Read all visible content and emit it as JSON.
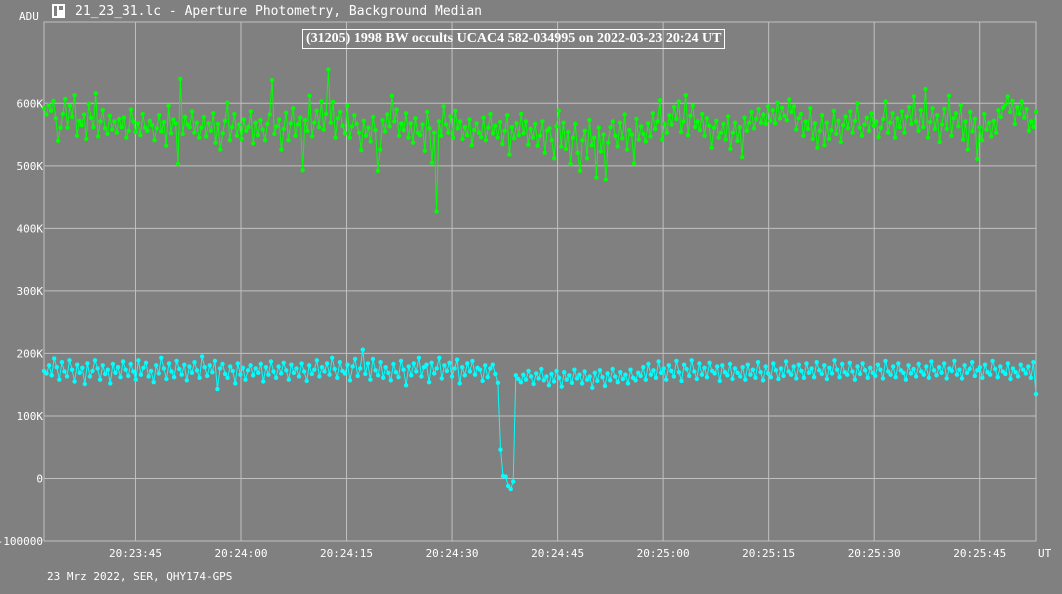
{
  "window": {
    "icon": "lightcurve-file-icon",
    "title": "21_23_31.lc - Aperture Photometry, Background Median"
  },
  "footer": {
    "text": "23 Mrz 2022, SER, QHY174-GPS"
  },
  "chart_data": {
    "type": "line",
    "title": "(31205) 1998 BW occults UCAC4 582-034995 on 2022-03-23 20:24 UT",
    "ylabel": "ADU",
    "xlabel": "UT",
    "x_start_seconds": 1412,
    "x_end_seconds": 1553,
    "x_ticks": [
      "20:23:45",
      "20:24:00",
      "20:24:15",
      "20:24:30",
      "20:24:45",
      "20:25:00",
      "20:25:15",
      "20:25:30",
      "20:25:45"
    ],
    "x_tick_seconds": [
      1425,
      1440,
      1455,
      1470,
      1485,
      1500,
      1515,
      1530,
      1545
    ],
    "y_ticks": [
      "-100000",
      "0",
      "100K",
      "200K",
      "300K",
      "400K",
      "500K",
      "600K"
    ],
    "y_tick_values": [
      -100000,
      0,
      100000,
      200000,
      300000,
      400000,
      500000,
      600000
    ],
    "ylim": [
      -100000,
      730000
    ],
    "grid": true,
    "colors": {
      "comparison": "#00ff00",
      "target": "#00ffff",
      "grid": "#c0c0c0"
    },
    "series": [
      {
        "color": "#00ff00",
        "values": [
          592000,
          582000,
          597000,
          588000,
          604000,
          576000,
          540000,
          561000,
          583000,
          607000,
          561000,
          596000,
          578000,
          613000,
          548000,
          572000,
          565000,
          582000,
          543000,
          599000,
          577000,
          562000,
          616000,
          547000,
          571000,
          589000,
          560000,
          551000,
          580000,
          558000,
          571000,
          553000,
          575000,
          562000,
          577000,
          545000,
          556000,
          590000,
          571000,
          554000,
          568000,
          549000,
          583000,
          561000,
          556000,
          572000,
          565000,
          541000,
          560000,
          581000,
          555000,
          570000,
          532000,
          596000,
          552000,
          574000,
          568000,
          503000,
          639000,
          551000,
          578000,
          566000,
          562000,
          587000,
          553000,
          569000,
          545000,
          561000,
          578000,
          547000,
          568000,
          556000,
          584000,
          537000,
          567000,
          526000,
          552000,
          572000,
          601000,
          541000,
          562000,
          583000,
          548000,
          566000,
          543000,
          574000,
          556000,
          562000,
          587000,
          536000,
          569000,
          549000,
          573000,
          558000,
          541000,
          567000,
          582000,
          637000,
          551000,
          563000,
          574000,
          526000,
          559000,
          585000,
          541000,
          568000,
          592000,
          548000,
          566000,
          577000,
          493000,
          573000,
          556000,
          612000,
          547000,
          569000,
          588000,
          562000,
          603000,
          558000,
          583000,
          654000,
          569000,
          602000,
          545000,
          576000,
          586000,
          564000,
          552000,
          596000,
          545000,
          563000,
          581000,
          567000,
          553000,
          525000,
          572000,
          548000,
          561000,
          539000,
          578000,
          557000,
          492000,
          526000,
          573000,
          555000,
          582000,
          563000,
          612000,
          571000,
          590000,
          548000,
          568000,
          557000,
          584000,
          545000,
          568000,
          537000,
          576000,
          553000,
          549000,
          566000,
          524000,
          586000,
          560000,
          505000,
          553000,
          427000,
          571000,
          548000,
          595000,
          566000,
          553000,
          579000,
          545000,
          588000,
          560000,
          571000,
          543000,
          562000,
          549000,
          574000,
          533000,
          557000,
          568000,
          553000,
          546000,
          577000,
          541000,
          561000,
          583000,
          552000,
          564000,
          545000,
          570000,
          535000,
          556000,
          581000,
          518000,
          562000,
          544000,
          568000,
          549000,
          583000,
          552000,
          571000,
          534000,
          559000,
          545000,
          567000,
          532000,
          548000,
          571000,
          521000,
          556000,
          560000,
          541000,
          512000,
          563000,
          588000,
          531000,
          569000,
          527000,
          554000,
          503000,
          545000,
          567000,
          521000,
          492000,
          541000,
          556000,
          512000,
          573000,
          533000,
          545000,
          481000,
          561000,
          523000,
          550000,
          478000,
          537000,
          562000,
          571000,
          548000,
          531000,
          569000,
          544000,
          582000,
          526000,
          557000,
          550000,
          504000,
          575000,
          542000,
          563000,
          551000,
          539000,
          568000,
          547000,
          584000,
          559000,
          571000,
          605000,
          542000,
          567000,
          553000,
          581000,
          566000,
          594000,
          575000,
          603000,
          554000,
          571000,
          613000,
          549000,
          580000,
          596000,
          562000,
          571000,
          557000,
          583000,
          548000,
          576000,
          564000,
          529000,
          561000,
          572000,
          545000,
          553000,
          567000,
          542000,
          579000,
          527000,
          553000,
          569000,
          540000,
          562000,
          514000,
          577000,
          556000,
          569000,
          586000,
          560000,
          575000,
          591000,
          569000,
          582000,
          567000,
          595000,
          572000,
          589000,
          568000,
          601000,
          576000,
          593000,
          580000,
          573000,
          606000,
          586000,
          595000,
          558000,
          576000,
          583000,
          548000,
          571000,
          559000,
          592000,
          543000,
          568000,
          529000,
          556000,
          581000,
          533000,
          569000,
          543000,
          557000,
          588000,
          551000,
          572000,
          538000,
          565000,
          579000,
          560000,
          587000,
          553000,
          572000,
          600000,
          561000,
          548000,
          566000,
          577000,
          556000,
          584000,
          564000,
          571000,
          546000,
          561000,
          575000,
          603000,
          553000,
          569000,
          584000,
          545000,
          576000,
          562000,
          587000,
          553000,
          579000,
          594000,
          567000,
          611000,
          571000,
          556000,
          589000,
          562000,
          623000,
          545000,
          570000,
          592000,
          559000,
          581000,
          538000,
          566000,
          591000,
          559000,
          612000,
          548000,
          576000,
          584000,
          563000,
          597000,
          542000,
          571000,
          526000,
          586000,
          555000,
          575000,
          511000,
          562000,
          541000,
          583000,
          558000,
          569000,
          547000,
          572000,
          553000,
          589000,
          578000,
          593000,
          598000,
          611000,
          586000,
          604000,
          567000,
          594000,
          583000,
          603000,
          577000,
          591000,
          556000,
          571000,
          562000,
          586000
        ]
      },
      {
        "color": "#00ffff",
        "values": [
          172000,
          168000,
          181000,
          165000,
          192000,
          178000,
          158000,
          186000,
          171000,
          163000,
          189000,
          174000,
          155000,
          182000,
          169000,
          177000,
          151000,
          184000,
          163000,
          172000,
          189000,
          176000,
          158000,
          181000,
          167000,
          174000,
          152000,
          183000,
          169000,
          178000,
          162000,
          187000,
          174000,
          164000,
          183000,
          171000,
          158000,
          189000,
          166000,
          177000,
          185000,
          163000,
          172000,
          154000,
          181000,
          168000,
          193000,
          176000,
          159000,
          184000,
          171000,
          162000,
          188000,
          175000,
          166000,
          182000,
          157000,
          179000,
          169000,
          186000,
          173000,
          161000,
          195000,
          178000,
          164000,
          181000,
          170000,
          188000,
          143000,
          176000,
          183000,
          167000,
          161000,
          179000,
          172000,
          152000,
          184000,
          166000,
          177000,
          158000,
          173000,
          181000,
          165000,
          176000,
          169000,
          183000,
          155000,
          178000,
          166000,
          187000,
          171000,
          161000,
          179000,
          168000,
          185000,
          173000,
          158000,
          182000,
          169000,
          176000,
          163000,
          184000,
          171000,
          156000,
          181000,
          167000,
          174000,
          189000,
          163000,
          178000,
          171000,
          184000,
          166000,
          193000,
          175000,
          161000,
          186000,
          172000,
          168000,
          182000,
          157000,
          179000,
          191000,
          164000,
          176000,
          206000,
          167000,
          184000,
          158000,
          191000,
          173000,
          165000,
          186000,
          161000,
          178000,
          169000,
          157000,
          183000,
          170000,
          162000,
          188000,
          174000,
          149000,
          179000,
          165000,
          184000,
          171000,
          193000,
          163000,
          178000,
          182000,
          154000,
          185000,
          168000,
          176000,
          193000,
          160000,
          181000,
          172000,
          185000,
          163000,
          176000,
          190000,
          152000,
          178000,
          165000,
          184000,
          171000,
          188000,
          166000,
          177000,
          174000,
          156000,
          181000,
          162000,
          176000,
          182000,
          167000,
          153000,
          46000,
          4000,
          3000,
          -12000,
          -17000,
          -5000,
          165000,
          159000,
          154000,
          166000,
          158000,
          172000,
          163000,
          151000,
          168000,
          160000,
          175000,
          157000,
          163000,
          149000,
          167000,
          155000,
          172000,
          161000,
          147000,
          170000,
          158000,
          165000,
          153000,
          174000,
          160000,
          166000,
          152000,
          171000,
          158000,
          163000,
          145000,
          169000,
          156000,
          173000,
          162000,
          148000,
          168000,
          157000,
          175000,
          163000,
          154000,
          170000,
          159000,
          166000,
          152000,
          174000,
          161000,
          157000,
          169000,
          164000,
          178000,
          158000,
          183000,
          166000,
          173000,
          161000,
          187000,
          169000,
          176000,
          158000,
          181000,
          172000,
          163000,
          188000,
          170000,
          156000,
          182000,
          175000,
          164000,
          189000,
          171000,
          159000,
          184000,
          166000,
          177000,
          162000,
          185000,
          172000,
          168000,
          179000,
          156000,
          181000,
          170000,
          165000,
          183000,
          159000,
          176000,
          169000,
          163000,
          178000,
          158000,
          182000,
          166000,
          174000,
          161000,
          186000,
          170000,
          157000,
          179000,
          168000,
          162000,
          184000,
          173000,
          159000,
          176000,
          164000,
          187000,
          171000,
          166000,
          179000,
          160000,
          182000,
          172000,
          161000,
          184000,
          169000,
          176000,
          162000,
          186000,
          173000,
          167000,
          181000,
          159000,
          177000,
          168000,
          189000,
          174000,
          162000,
          183000,
          170000,
          166000,
          185000,
          171000,
          158000,
          179000,
          167000,
          184000,
          173000,
          161000,
          177000,
          169000,
          164000,
          182000,
          174000,
          160000,
          188000,
          171000,
          166000,
          179000,
          162000,
          184000,
          173000,
          169000,
          158000,
          181000,
          168000,
          175000,
          163000,
          183000,
          171000,
          166000,
          179000,
          161000,
          187000,
          173000,
          165000,
          178000,
          169000,
          184000,
          160000,
          176000,
          172000,
          188000,
          166000,
          174000,
          160000,
          181000,
          169000,
          175000,
          186000,
          164000,
          173000,
          178000,
          161000,
          182000,
          170000,
          166000,
          188000,
          175000,
          162000,
          179000,
          171000,
          167000,
          184000,
          159000,
          176000,
          170000,
          163000,
          182000,
          174000,
          168000,
          179000,
          161000,
          186000,
          135000
        ]
      }
    ]
  }
}
